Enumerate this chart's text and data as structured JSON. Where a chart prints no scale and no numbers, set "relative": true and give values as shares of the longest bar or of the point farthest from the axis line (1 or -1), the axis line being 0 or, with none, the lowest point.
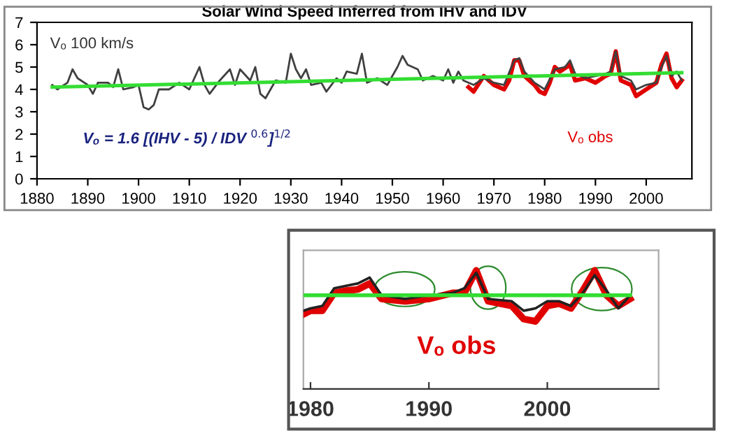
{
  "chart_data": [
    {
      "type": "line",
      "title": "Solar Wind Speed Inferred from IHV and IDV",
      "xlim": [
        1880,
        2009
      ],
      "xticks": [
        1880,
        1890,
        1900,
        1910,
        1920,
        1930,
        1940,
        1950,
        1960,
        1970,
        1980,
        1990,
        2000
      ],
      "ylim": [
        0,
        7
      ],
      "yticks": [
        0,
        1,
        2,
        3,
        4,
        5,
        6,
        7
      ],
      "grid": false,
      "legend": false,
      "marker": "none",
      "annotations": [
        "Vₒ 100 km/s",
        "Vₒ = 1.6 [(IHV - 5) / IDV $^{0.6}$]$^{1/2}$",
        "Vₒ obs"
      ],
      "series": [
        {
          "color": "#404040",
          "x": [
            1883,
            1884,
            1886,
            1887,
            1888,
            1890,
            1891,
            1892,
            1894,
            1895,
            1896,
            1897,
            1899,
            1900,
            1901,
            1902,
            1903,
            1904,
            1906,
            1908,
            1910,
            1912,
            1913,
            1914,
            1916,
            1918,
            1919,
            1920,
            1922,
            1923,
            1924,
            1925,
            1927,
            1929,
            1930,
            1931,
            1932,
            1933,
            1934,
            1936,
            1937,
            1939,
            1940,
            1941,
            1943,
            1944,
            1945,
            1947,
            1949,
            1950,
            1951,
            1952,
            1953,
            1955,
            1956,
            1958,
            1960,
            1961,
            1962,
            1963,
            1964,
            1966,
            1968,
            1970,
            1972,
            1974,
            1975,
            1976,
            1978,
            1980,
            1982,
            1984,
            1985,
            1986,
            1988,
            1990,
            1992,
            1993,
            1994,
            1995,
            1997,
            1998,
            2000,
            2002,
            2003,
            2004,
            2005,
            2006,
            2007
          ],
          "values": [
            4.2,
            4.0,
            4.3,
            4.9,
            4.5,
            4.2,
            3.8,
            4.3,
            4.3,
            4.1,
            4.9,
            4.0,
            4.1,
            4.2,
            3.2,
            3.1,
            3.3,
            4.0,
            4.0,
            4.3,
            4.0,
            5.0,
            4.2,
            3.8,
            4.4,
            4.9,
            4.2,
            4.9,
            4.4,
            5.0,
            3.8,
            3.6,
            4.4,
            4.3,
            5.6,
            4.9,
            4.5,
            4.9,
            4.2,
            4.3,
            3.9,
            4.5,
            4.3,
            4.8,
            4.7,
            5.6,
            4.3,
            4.5,
            4.2,
            4.6,
            5.0,
            5.5,
            5.1,
            4.9,
            4.4,
            4.6,
            4.4,
            4.9,
            4.3,
            4.8,
            4.4,
            4.2,
            4.5,
            4.3,
            4.2,
            5.3,
            5.4,
            4.8,
            4.3,
            4.0,
            4.9,
            5.0,
            5.3,
            4.7,
            4.5,
            4.6,
            4.7,
            4.8,
            5.7,
            4.6,
            4.4,
            4.0,
            4.2,
            4.3,
            5.0,
            5.5,
            4.6,
            4.8,
            4.4
          ]
        },
        {
          "color": "#e00000",
          "x": [
            1965,
            1966,
            1968,
            1970,
            1972,
            1973,
            1974,
            1975,
            1976,
            1978,
            1979,
            1980,
            1981,
            1982,
            1983,
            1985,
            1986,
            1988,
            1990,
            1992,
            1993,
            1994,
            1995,
            1997,
            1998,
            2000,
            2002,
            2003,
            2004,
            2005,
            2006,
            2007
          ],
          "values": [
            4.1,
            3.9,
            4.6,
            4.2,
            4.0,
            4.4,
            5.3,
            5.3,
            4.6,
            4.2,
            3.9,
            3.8,
            4.3,
            5.0,
            4.8,
            5.1,
            4.4,
            4.5,
            4.3,
            4.6,
            4.7,
            5.7,
            4.4,
            4.2,
            3.7,
            4.0,
            4.3,
            5.1,
            5.6,
            4.5,
            4.1,
            4.4
          ]
        },
        {
          "color": "#33dd33",
          "x": [
            1883,
            2007
          ],
          "values": [
            4.1,
            4.75
          ]
        }
      ]
    },
    {
      "type": "line",
      "relative": true,
      "xlim": [
        1979.4,
        2009.4
      ],
      "xticks": [
        1980,
        1990,
        2000
      ],
      "tick_labels": "x",
      "grid": false,
      "legend": false,
      "marker": "none",
      "annotations": [
        "Vₒ obs"
      ],
      "series": [
        {
          "color": "#222222",
          "x": [
            1979.4,
            1980,
            1981,
            1982,
            1983,
            1984,
            1985,
            1986,
            1988,
            1990,
            1992,
            1993,
            1994,
            1995,
            1997,
            1998,
            1999,
            2000,
            2001,
            2002,
            2003,
            2004,
            2005,
            2006,
            2007
          ],
          "values": [
            0.66,
            0.68,
            0.7,
            0.85,
            0.87,
            0.89,
            0.94,
            0.79,
            0.76,
            0.79,
            0.81,
            0.85,
            0.98,
            0.76,
            0.74,
            0.66,
            0.68,
            0.74,
            0.74,
            0.7,
            0.81,
            0.96,
            0.83,
            0.68,
            0.79
          ]
        },
        {
          "color": "#e00000",
          "x": [
            1979.4,
            1980,
            1981,
            1982,
            1983,
            1984,
            1985,
            1986,
            1988,
            1990,
            1992,
            1993,
            1994,
            1995,
            1997,
            1998,
            1999,
            2000,
            2001,
            2002,
            2003,
            2004,
            2005,
            2006,
            2007
          ],
          "values": [
            0.63,
            0.66,
            0.66,
            0.81,
            0.83,
            0.84,
            0.89,
            0.76,
            0.74,
            0.76,
            0.81,
            0.81,
            1.0,
            0.74,
            0.7,
            0.59,
            0.57,
            0.7,
            0.72,
            0.68,
            0.83,
            1.0,
            0.79,
            0.7,
            0.76
          ]
        },
        {
          "color": "#33dd33",
          "x": [
            1979.4,
            2007
          ],
          "values": [
            0.79,
            0.79
          ]
        }
      ]
    }
  ]
}
